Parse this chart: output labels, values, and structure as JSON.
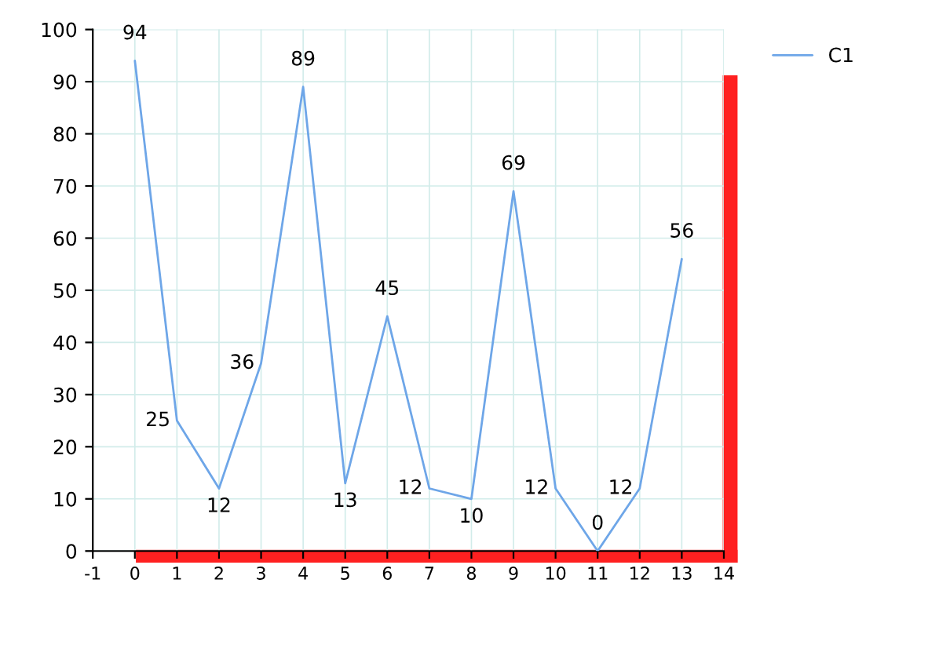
{
  "chart_data": {
    "type": "line",
    "x": [
      0,
      1,
      2,
      3,
      4,
      5,
      6,
      7,
      8,
      9,
      10,
      11,
      12,
      13
    ],
    "series": [
      {
        "name": "C1",
        "color": "#6ea6e8",
        "values": [
          94,
          25,
          12,
          36,
          89,
          13,
          45,
          12,
          10,
          69,
          12,
          0,
          12,
          56
        ]
      }
    ],
    "xlim": [
      -1,
      14
    ],
    "xticks": [
      -1,
      0,
      1,
      2,
      3,
      4,
      5,
      6,
      7,
      8,
      9,
      10,
      11,
      12,
      13,
      14
    ],
    "ylim": [
      0,
      100
    ],
    "yticks": [
      0,
      10,
      20,
      30,
      40,
      50,
      60,
      70,
      80,
      90,
      100
    ],
    "grid": true,
    "legend": "top right",
    "data_labels": true,
    "marker": "none",
    "line_style": "solid"
  }
}
